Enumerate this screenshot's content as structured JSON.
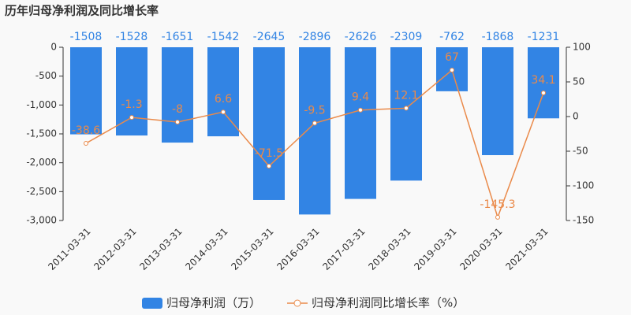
{
  "chart_data": {
    "type": "bar-line",
    "title": "历年归母净利润及同比增长率",
    "categories": [
      "2011-03-31",
      "2012-03-31",
      "2013-03-31",
      "2014-03-31",
      "2015-03-31",
      "2016-03-31",
      "2017-03-31",
      "2018-03-31",
      "2019-03-31",
      "2020-03-31",
      "2021-03-31"
    ],
    "series": [
      {
        "name": "归母净利润（万）",
        "type": "bar",
        "color": "#3284e4",
        "values": [
          -1508,
          -1528,
          -1651,
          -1542,
          -2645,
          -2896,
          -2626,
          -2309,
          -762,
          -1868,
          -1231
        ]
      },
      {
        "name": "归母净利润同比增长率（%）",
        "type": "line",
        "axis": "y2",
        "color": "#ea8a4a",
        "values": [
          -38.6,
          -1.3,
          -8,
          6.6,
          -71.5,
          -9.5,
          9.4,
          12.1,
          67,
          -145.3,
          34.1
        ]
      }
    ],
    "ylim": [
      -3000,
      0
    ],
    "yticks": [
      {
        "value": -3000,
        "label": "-3,000"
      },
      {
        "value": -2500,
        "label": "-2,500"
      },
      {
        "value": -2000,
        "label": "-2,000"
      },
      {
        "value": -1500,
        "label": "-1,500"
      },
      {
        "value": -1000,
        "label": "-1,000"
      },
      -500,
      0
    ],
    "y2lim": [
      -150,
      100
    ],
    "y2ticks": [
      -150,
      -100,
      -50,
      0,
      50,
      100
    ],
    "legend": "bottom"
  }
}
